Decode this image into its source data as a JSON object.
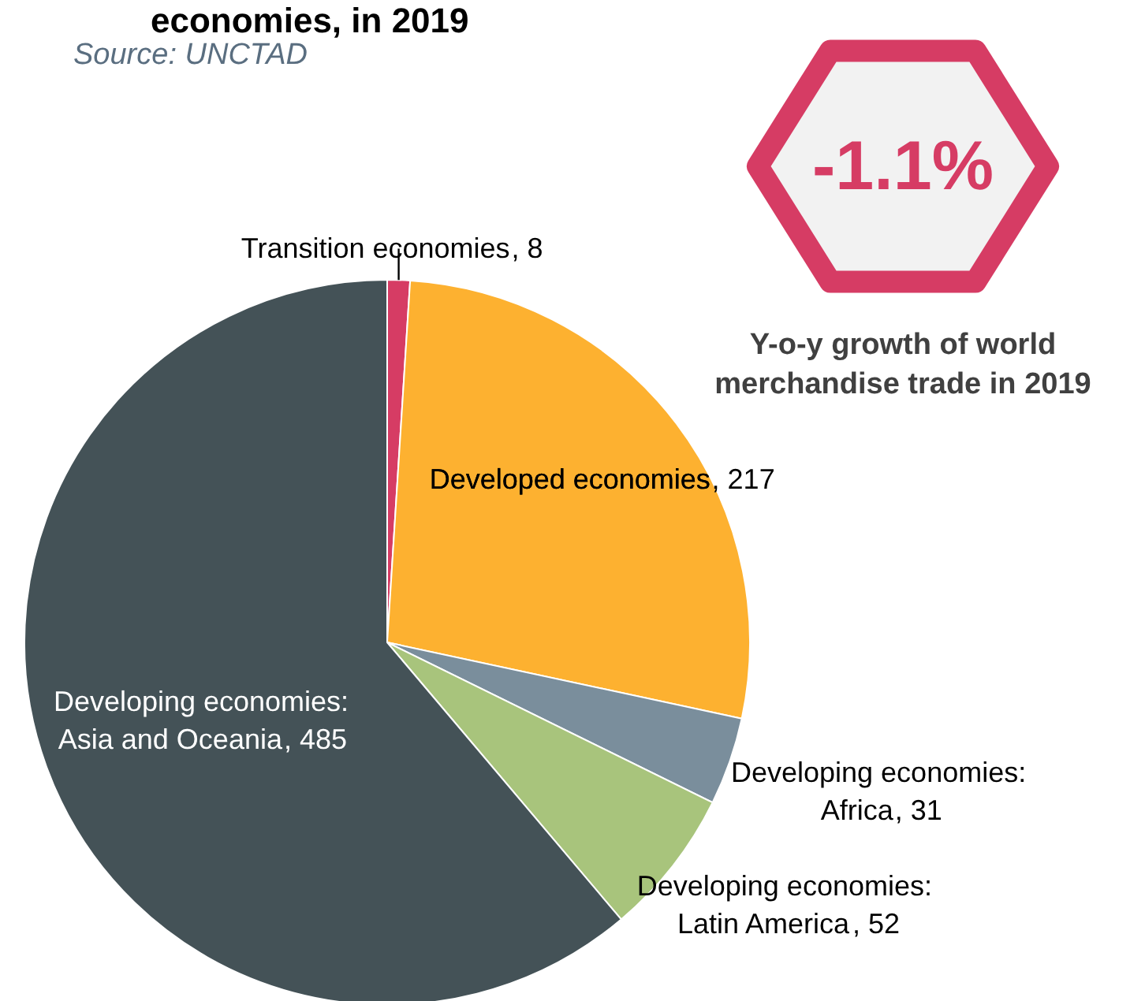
{
  "chart_data": {
    "type": "pie",
    "title": "economies, in 2019",
    "subtitle": "Source: UNCTAD",
    "categories": [
      "Transition economies",
      "Developed economies",
      "Developing economies: Africa",
      "Developing economies: Latin America",
      "Developing economies: Asia and Oceania"
    ],
    "values": [
      8,
      217,
      31,
      52,
      485
    ],
    "colors": [
      "#d63c64",
      "#fdb130",
      "#7a8e9c",
      "#a8c47c",
      "#445257"
    ],
    "value_labels": [
      ", 8",
      ", 217",
      ", 31",
      ", 52",
      ", 485"
    ],
    "annotations": [
      "-1.1%",
      "Y-o-y growth of world merchandise trade in 2019"
    ]
  }
}
